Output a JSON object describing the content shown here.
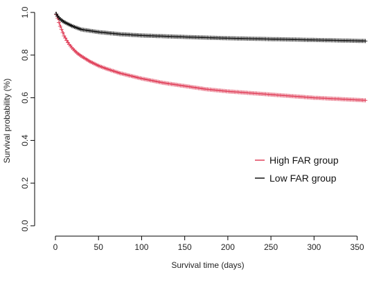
{
  "chart_data": {
    "type": "line",
    "xlabel": "Survival time (days)",
    "ylabel": "Survival probability (%)",
    "xlim": [
      0,
      365
    ],
    "ylim": [
      0,
      1.0
    ],
    "xticks": [
      0,
      50,
      100,
      150,
      200,
      250,
      300,
      350
    ],
    "yticks": [
      0.0,
      0.2,
      0.4,
      0.6,
      0.8,
      1.0
    ],
    "x_tick_labels": [
      "0",
      "50",
      "100",
      "150",
      "200",
      "250",
      "300",
      "350"
    ],
    "y_tick_labels": [
      "0.0",
      "0.2",
      "0.4",
      "0.6",
      "0.8",
      "1.0"
    ],
    "grid": false,
    "legend_position": "center-right",
    "series": [
      {
        "name": "High FAR group",
        "color": "#e0405a",
        "x": [
          0,
          2,
          5,
          10,
          15,
          20,
          25,
          30,
          40,
          50,
          60,
          75,
          100,
          125,
          150,
          175,
          200,
          250,
          300,
          350,
          360
        ],
        "y": [
          1.0,
          0.98,
          0.94,
          0.89,
          0.855,
          0.83,
          0.81,
          0.795,
          0.77,
          0.75,
          0.735,
          0.715,
          0.69,
          0.67,
          0.655,
          0.64,
          0.63,
          0.615,
          0.6,
          0.59,
          0.588
        ]
      },
      {
        "name": "Low FAR group",
        "color": "#111111",
        "x": [
          0,
          2,
          5,
          10,
          20,
          30,
          50,
          75,
          100,
          150,
          200,
          250,
          300,
          350,
          360
        ],
        "y": [
          1.0,
          0.985,
          0.97,
          0.955,
          0.935,
          0.92,
          0.908,
          0.898,
          0.892,
          0.885,
          0.879,
          0.875,
          0.871,
          0.867,
          0.866
        ]
      }
    ]
  }
}
